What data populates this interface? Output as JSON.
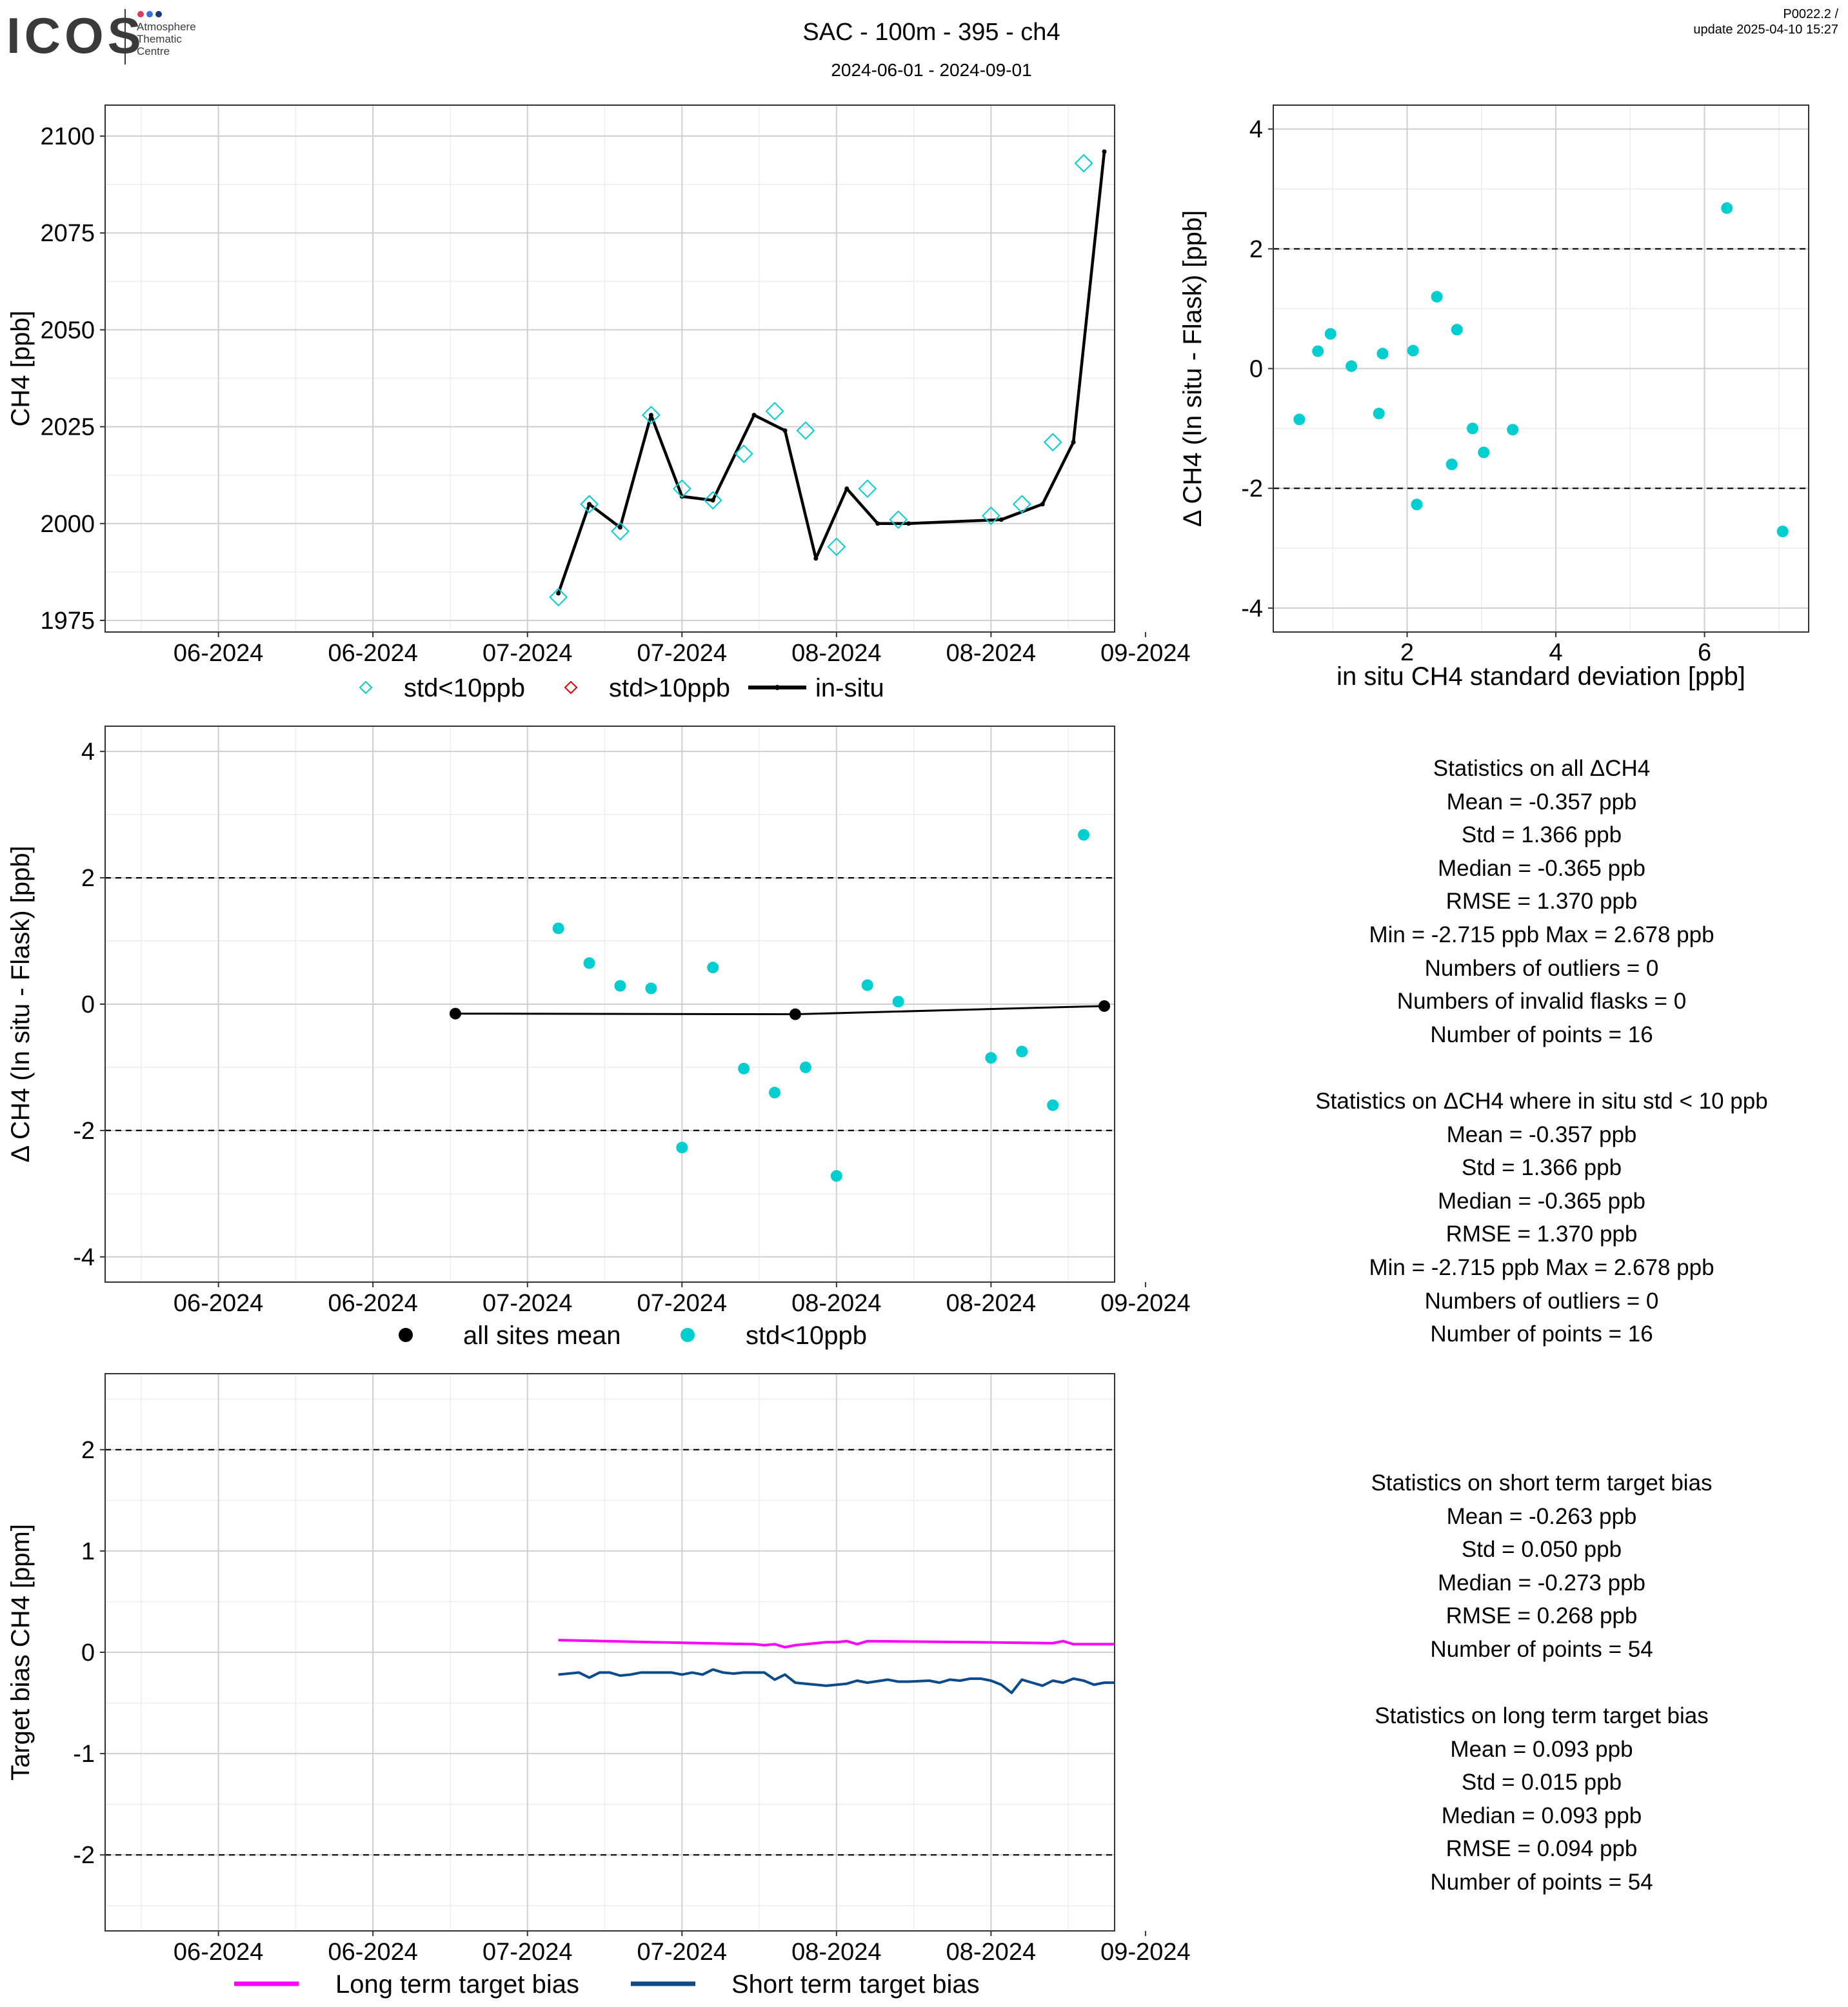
{
  "header": {
    "logo_text": "ICOS",
    "logo_sub": [
      "Atmosphere",
      "Thematic",
      "Centre"
    ],
    "title": "SAC - 100m - 395 - ch4",
    "date_range": "2024-06-01 - 2024-09-01",
    "version": "P0022.2 /",
    "update": "update  2025-04-10 15:27"
  },
  "colors": {
    "cyan": "#00CED1",
    "red": "#E00000",
    "black": "#000000",
    "magenta": "#FF00FF",
    "navy": "#0B4A8B",
    "grid_major": "#cfcfcf",
    "grid_minor": "#ececec"
  },
  "chart_data": [
    {
      "id": "ch4_timeseries",
      "type": "line",
      "ylabel": "CH4 [ppb]",
      "xlabel": "",
      "x_range": [
        "2024-05-28",
        "2024-09-03"
      ],
      "x_ticks": [
        "2024-06-08",
        "2024-06-23",
        "2024-07-08",
        "2024-07-23",
        "2024-08-07",
        "2024-08-22",
        "2024-09-06"
      ],
      "x_tick_labels": [
        "06-2024",
        "06-2024",
        "07-2024",
        "07-2024",
        "08-2024",
        "08-2024",
        "09-2024"
      ],
      "ylim": [
        1972,
        2108
      ],
      "y_ticks": [
        1975,
        2000,
        2025,
        2050,
        2075,
        2100
      ],
      "series": [
        {
          "name": "in-situ",
          "kind": "line",
          "color": "#000000",
          "x": [
            "2024-07-11",
            "2024-07-14",
            "2024-07-17",
            "2024-07-20",
            "2024-07-23",
            "2024-07-26",
            "2024-07-30",
            "2024-08-02",
            "2024-08-05",
            "2024-08-08",
            "2024-08-11",
            "2024-08-14",
            "2024-08-23",
            "2024-08-27",
            "2024-08-30",
            "2024-09-02"
          ],
          "y": [
            1982,
            2005,
            1999,
            2028,
            2007,
            2006,
            2028,
            2024,
            1991,
            2009,
            2000,
            2000,
            2001,
            2005,
            2021,
            2096
          ]
        },
        {
          "name": "std<10ppb",
          "kind": "diamond",
          "color": "#00CED1",
          "x": [
            "2024-07-11",
            "2024-07-14",
            "2024-07-17",
            "2024-07-20",
            "2024-07-23",
            "2024-07-26",
            "2024-07-29",
            "2024-08-01",
            "2024-08-04",
            "2024-08-07",
            "2024-08-10",
            "2024-08-13",
            "2024-08-22",
            "2024-08-25",
            "2024-08-28",
            "2024-08-31"
          ],
          "y": [
            1981,
            2005,
            1998,
            2028,
            2009,
            2006,
            2018,
            2029,
            2024,
            1994,
            2009,
            2001,
            2002,
            2005,
            2021,
            2093
          ]
        },
        {
          "name": "std>10ppb",
          "kind": "diamond",
          "color": "#E00000",
          "x": [],
          "y": []
        }
      ],
      "legend": {
        "position": "bottom",
        "entries": [
          "std<10ppb",
          "std>10ppb",
          "in-situ"
        ]
      }
    },
    {
      "id": "delta_vs_std",
      "type": "scatter",
      "xlabel": "in situ CH4 standard deviation [ppb]",
      "ylabel": "Δ CH4 (In situ - Flask) [ppb]",
      "xlim": [
        0.2,
        7.4
      ],
      "x_ticks": [
        2,
        4,
        6
      ],
      "ylim": [
        -4.4,
        4.4
      ],
      "y_ticks": [
        -4,
        -2,
        0,
        2,
        4
      ],
      "hlines": [
        2,
        -2
      ],
      "points": {
        "color": "#00CED1",
        "x": [
          0.55,
          0.8,
          0.97,
          1.25,
          1.62,
          1.67,
          2.08,
          2.13,
          2.4,
          2.6,
          2.67,
          2.88,
          3.03,
          3.42,
          6.3,
          7.05
        ],
        "y": [
          -0.85,
          0.29,
          0.58,
          0.04,
          -0.75,
          0.25,
          0.3,
          -2.27,
          1.2,
          -1.6,
          0.65,
          -1.0,
          -1.4,
          -1.02,
          2.68,
          -2.72
        ]
      }
    },
    {
      "id": "delta_timeseries",
      "type": "scatter",
      "ylabel": "Δ CH4 (In situ - Flask) [ppb]",
      "xlabel": "",
      "x_range": [
        "2024-05-28",
        "2024-09-03"
      ],
      "x_ticks": [
        "2024-06-08",
        "2024-06-23",
        "2024-07-08",
        "2024-07-23",
        "2024-08-07",
        "2024-08-22",
        "2024-09-06"
      ],
      "x_tick_labels": [
        "06-2024",
        "06-2024",
        "07-2024",
        "07-2024",
        "08-2024",
        "08-2024",
        "09-2024"
      ],
      "ylim": [
        -4.4,
        4.4
      ],
      "y_ticks": [
        -4,
        -2,
        0,
        2,
        4
      ],
      "hlines": [
        2,
        -2
      ],
      "series": [
        {
          "name": "all sites mean",
          "kind": "line-points",
          "color": "#000000",
          "x": [
            "2024-07-01",
            "2024-08-03",
            "2024-09-02"
          ],
          "y": [
            -0.15,
            -0.16,
            -0.03
          ]
        },
        {
          "name": "std<10ppb",
          "kind": "points",
          "color": "#00CED1",
          "x": [
            "2024-07-11",
            "2024-07-14",
            "2024-07-17",
            "2024-07-20",
            "2024-07-23",
            "2024-07-26",
            "2024-07-29",
            "2024-08-01",
            "2024-08-04",
            "2024-08-07",
            "2024-08-10",
            "2024-08-13",
            "2024-08-22",
            "2024-08-25",
            "2024-08-28",
            "2024-08-31"
          ],
          "y": [
            1.2,
            0.65,
            0.29,
            0.25,
            -2.27,
            0.58,
            -1.02,
            -1.4,
            -1.0,
            -2.72,
            0.3,
            0.04,
            -0.85,
            -0.75,
            -1.6,
            2.68
          ]
        }
      ],
      "legend": {
        "position": "bottom",
        "entries": [
          "all sites mean",
          "std<10ppb"
        ]
      }
    },
    {
      "id": "target_bias",
      "type": "line",
      "ylabel": "Target bias CH4 [ppm]",
      "xlabel": "",
      "x_range": [
        "2024-05-28",
        "2024-09-03"
      ],
      "x_ticks": [
        "2024-06-08",
        "2024-06-23",
        "2024-07-08",
        "2024-07-23",
        "2024-08-07",
        "2024-08-22",
        "2024-09-06"
      ],
      "x_tick_labels": [
        "06-2024",
        "06-2024",
        "07-2024",
        "07-2024",
        "08-2024",
        "08-2024",
        "09-2024"
      ],
      "ylim": [
        -2.75,
        2.75
      ],
      "y_ticks": [
        -2,
        -1,
        0,
        1,
        2
      ],
      "hlines": [
        2,
        -2
      ],
      "series": [
        {
          "name": "Long term target bias",
          "color": "#FF00FF",
          "x": [
            "2024-07-11",
            "2024-07-20",
            "2024-07-30",
            "2024-07-31",
            "2024-08-01",
            "2024-08-02",
            "2024-08-03",
            "2024-08-04",
            "2024-08-05",
            "2024-08-06",
            "2024-08-07",
            "2024-08-08",
            "2024-08-09",
            "2024-08-10",
            "2024-08-20",
            "2024-08-28",
            "2024-08-29",
            "2024-08-30",
            "2024-09-03"
          ],
          "y": [
            0.12,
            0.1,
            0.08,
            0.07,
            0.08,
            0.05,
            0.07,
            0.08,
            0.09,
            0.1,
            0.1,
            0.11,
            0.08,
            0.11,
            0.1,
            0.09,
            0.11,
            0.08,
            0.08
          ]
        },
        {
          "name": "Short term target bias",
          "color": "#0B4A8B",
          "x": [
            "2024-07-11",
            "2024-07-13",
            "2024-07-14",
            "2024-07-15",
            "2024-07-16",
            "2024-07-17",
            "2024-07-18",
            "2024-07-19",
            "2024-07-20",
            "2024-07-22",
            "2024-07-23",
            "2024-07-24",
            "2024-07-25",
            "2024-07-26",
            "2024-07-27",
            "2024-07-28",
            "2024-07-29",
            "2024-07-30",
            "2024-07-31",
            "2024-08-01",
            "2024-08-02",
            "2024-08-03",
            "2024-08-04",
            "2024-08-06",
            "2024-08-08",
            "2024-08-09",
            "2024-08-10",
            "2024-08-12",
            "2024-08-13",
            "2024-08-14",
            "2024-08-16",
            "2024-08-17",
            "2024-08-18",
            "2024-08-19",
            "2024-08-20",
            "2024-08-21",
            "2024-08-22",
            "2024-08-23",
            "2024-08-24",
            "2024-08-25",
            "2024-08-26",
            "2024-08-27",
            "2024-08-28",
            "2024-08-29",
            "2024-08-30",
            "2024-08-31",
            "2024-09-01",
            "2024-09-02",
            "2024-09-03"
          ],
          "y": [
            -0.22,
            -0.2,
            -0.25,
            -0.2,
            -0.2,
            -0.23,
            -0.22,
            -0.2,
            -0.2,
            -0.2,
            -0.22,
            -0.2,
            -0.22,
            -0.17,
            -0.2,
            -0.21,
            -0.2,
            -0.2,
            -0.2,
            -0.27,
            -0.22,
            -0.3,
            -0.31,
            -0.33,
            -0.31,
            -0.28,
            -0.3,
            -0.27,
            -0.29,
            -0.29,
            -0.28,
            -0.3,
            -0.27,
            -0.28,
            -0.26,
            -0.26,
            -0.28,
            -0.32,
            -0.4,
            -0.27,
            -0.3,
            -0.33,
            -0.28,
            -0.3,
            -0.26,
            -0.28,
            -0.32,
            -0.3,
            -0.3
          ]
        }
      ],
      "legend": {
        "position": "bottom",
        "entries": [
          "Long term target bias",
          "Short term target bias"
        ]
      }
    }
  ],
  "stats": {
    "all": [
      "Statistics on all ΔCH4",
      "Mean =  -0.357 ppb",
      "Std =  1.366 ppb",
      "Median =  -0.365 ppb",
      "RMSE =  1.370 ppb",
      "Min =  -2.715 ppb Max =  2.678 ppb",
      "Numbers of outliers =  0",
      "Numbers of invalid flasks =  0",
      "Number of points =  16"
    ],
    "insitu": [
      "Statistics on ΔCH4 where in situ std < 10 ppb",
      "Mean =  -0.357 ppb",
      "Std =  1.366 ppb",
      "Median =  -0.365 ppb",
      "RMSE =  1.370 ppb",
      "Min =  -2.715 ppb Max =  2.678 ppb",
      "Numbers of outliers =  0",
      "Number of points =  16"
    ],
    "short": [
      "Statistics on short term target bias",
      "Mean =  -0.263 ppb",
      "Std =  0.050 ppb",
      "Median =  -0.273 ppb",
      "RMSE =  0.268 ppb",
      "Number of points =  54"
    ],
    "long": [
      "Statistics on long term target bias",
      "Mean =  0.093 ppb",
      "Std =  0.015 ppb",
      "Median =  0.093 ppb",
      "RMSE =  0.094 ppb",
      "Number of points =  54"
    ]
  }
}
